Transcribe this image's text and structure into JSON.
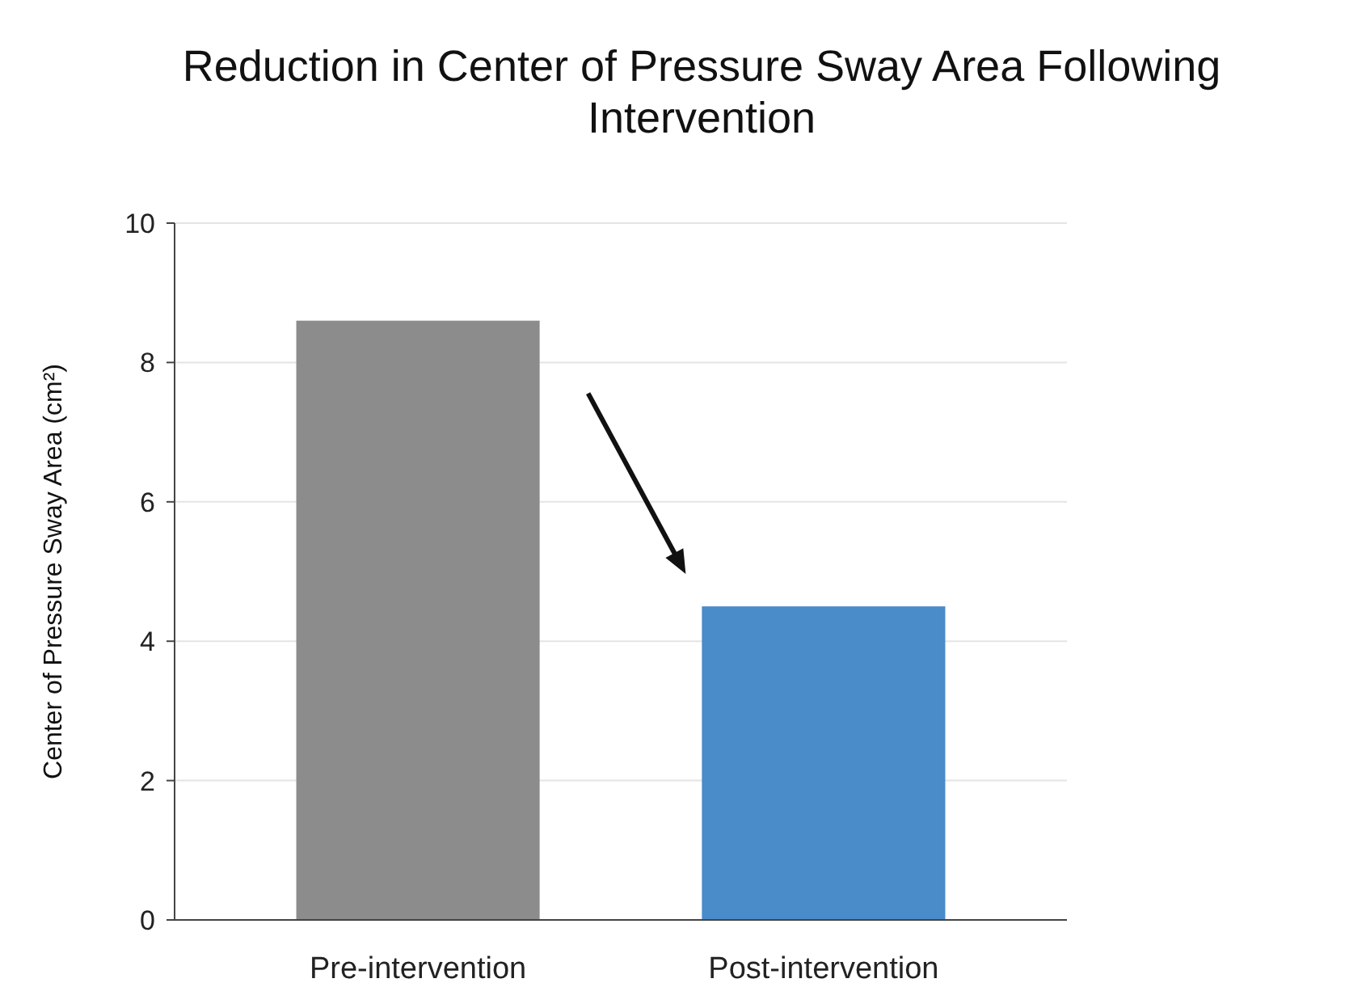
{
  "chart_data": {
    "type": "bar",
    "title": "Reduction in Center of Pressure Sway Area Following Intervention",
    "ylabel": "Center of Pressure Sway Area (cm²)",
    "categories": [
      "Pre-intervention",
      "Post-intervention"
    ],
    "values": [
      8.6,
      4.5
    ],
    "colors": [
      "#8c8c8c",
      "#4a8bc9"
    ],
    "ylim": [
      0,
      10
    ],
    "yticks": [
      0,
      2,
      4,
      6,
      8,
      10
    ],
    "grid": "y"
  }
}
